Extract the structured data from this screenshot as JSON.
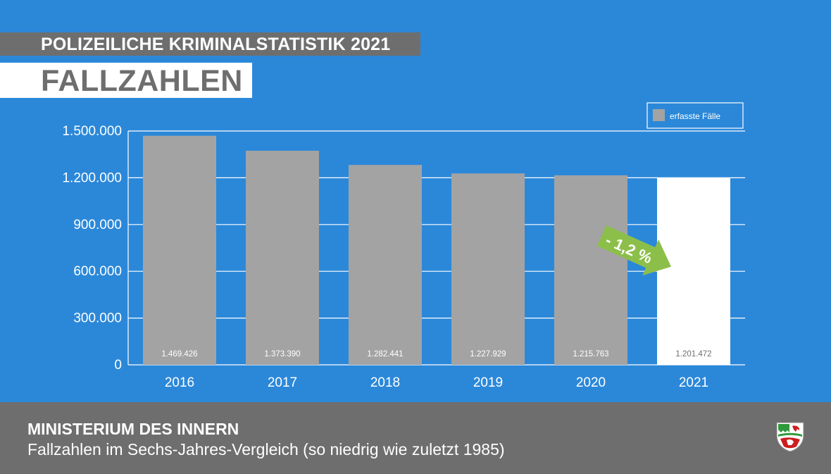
{
  "header": {
    "supertitle": "POLIZEILICHE KRIMINALSTATISTIK 2021",
    "title": "FALLZAHLEN"
  },
  "footer": {
    "ministry": "MINISTERIUM DES INNERN",
    "caption": "Fallzahlen im Sechs-Jahres-Vergleich (so niedrig wie zuletzt 1985)"
  },
  "crest_icon": "nrw-coat-of-arms-icon",
  "colors": {
    "background": "#2b88d9",
    "bar": "#a3a3a3",
    "highlight_bar": "#ffffff",
    "header_gray": "#6e6e6e",
    "arrow_green": "#8cbf4a"
  },
  "chart_data": {
    "type": "bar",
    "categories": [
      "2016",
      "2017",
      "2018",
      "2019",
      "2020",
      "2021"
    ],
    "series": [
      {
        "name": "erfasste Fälle",
        "values": [
          1469426,
          1373390,
          1282441,
          1227929,
          1215763,
          1201472
        ],
        "labels": [
          "1.469.426",
          "1.373.390",
          "1.282.441",
          "1.227.929",
          "1.215.763",
          "1.201.472"
        ]
      }
    ],
    "highlight_category": "2021",
    "ylim": [
      0,
      1500000
    ],
    "yticks": [
      0,
      300000,
      600000,
      900000,
      1200000,
      1500000
    ],
    "ytick_labels": [
      "0",
      "300.000",
      "600.000",
      "900.000",
      "1.200.000",
      "1.500.000"
    ],
    "grid": true,
    "legend_position": "top-right",
    "annotation": "- 1,2 %",
    "xlabel": "",
    "ylabel": ""
  }
}
